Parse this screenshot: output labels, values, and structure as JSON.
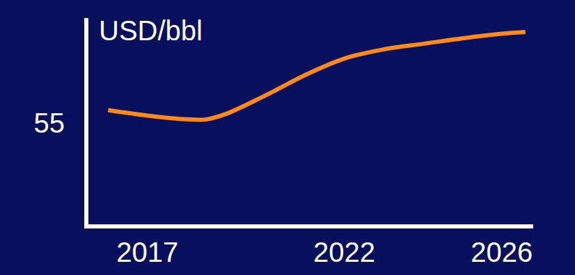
{
  "chart_data": {
    "type": "line",
    "y_label": "USD/bbl",
    "x": [
      2016,
      2017,
      2018,
      2018.5,
      2019,
      2020,
      2021,
      2022,
      2023,
      2024,
      2025,
      2026,
      2026.6
    ],
    "values": [
      62,
      59,
      57,
      57,
      60,
      70,
      81,
      90,
      95,
      98,
      101,
      103.5,
      104.5
    ],
    "color": "#ff8a1a",
    "xlim": [
      2015.5,
      2026.8
    ],
    "xticks": [
      2017,
      2022,
      2026
    ],
    "ylim": [
      0,
      112
    ],
    "yticks": [
      55
    ],
    "grid": false,
    "line_style": "smooth"
  }
}
